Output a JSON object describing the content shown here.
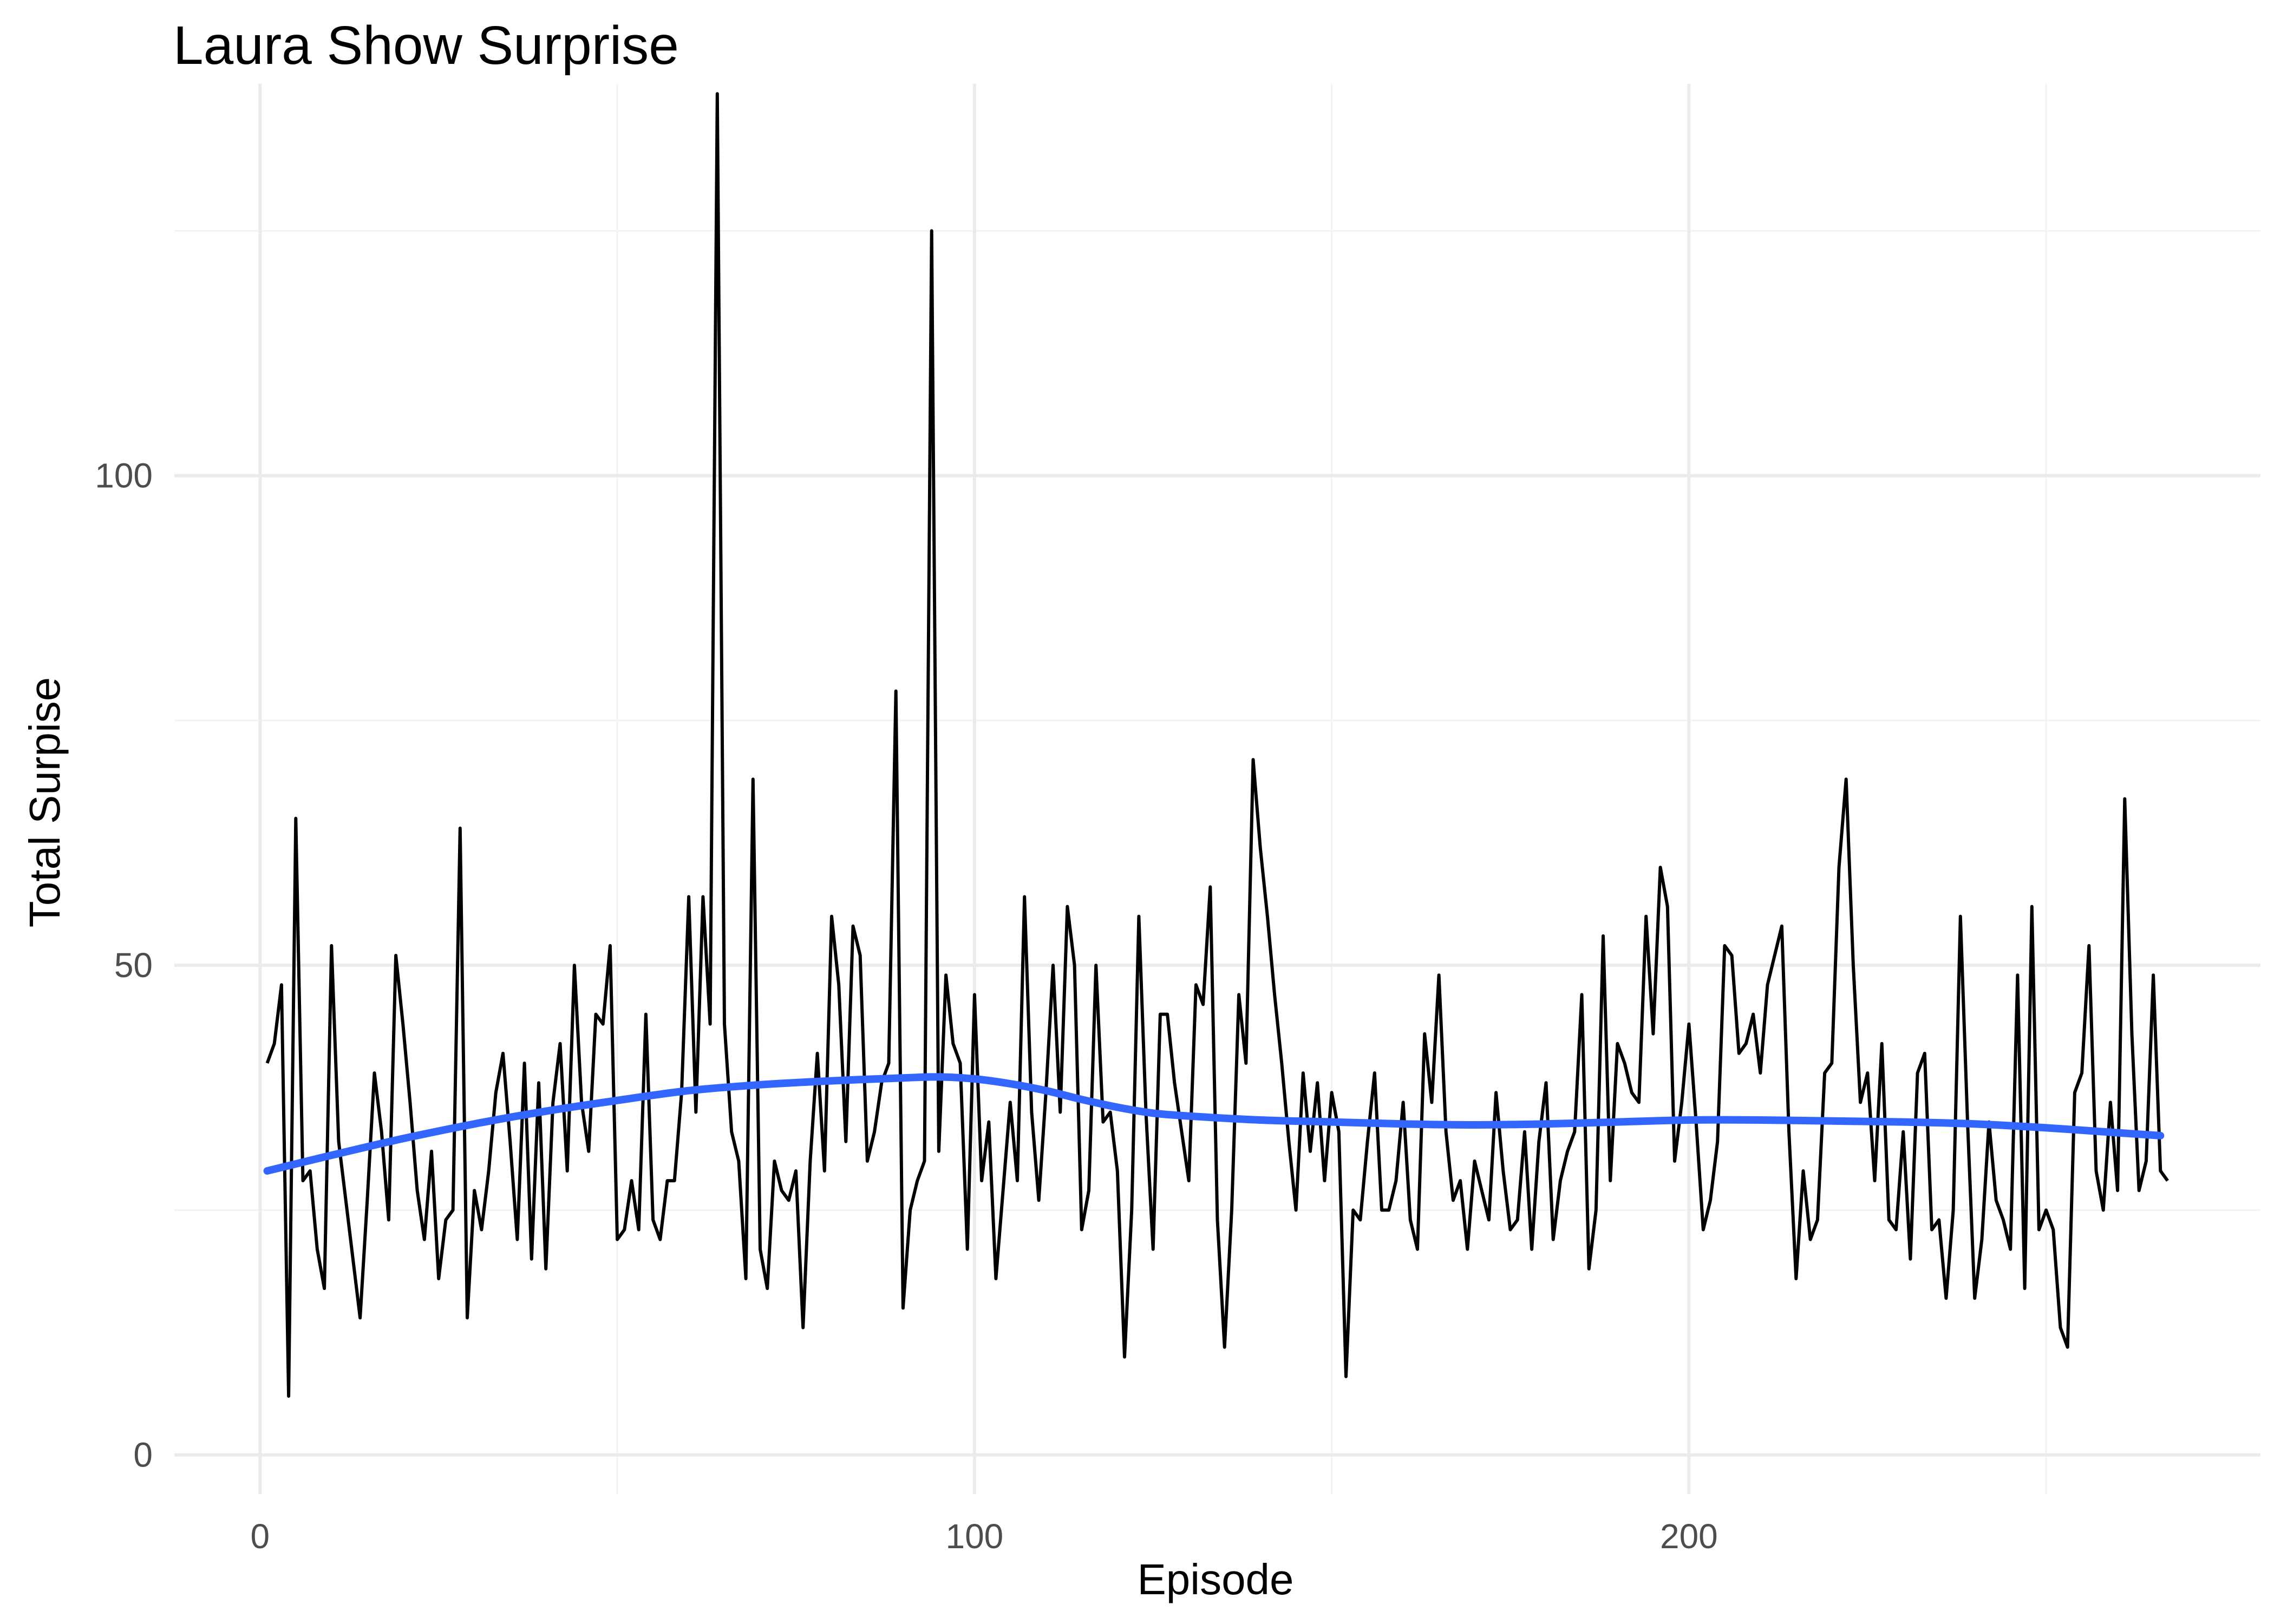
{
  "chart_data": {
    "type": "line",
    "title": "Laura Show Surprise",
    "xlabel": "Episode",
    "ylabel": "Total Surpise",
    "xlim": [
      -12,
      280
    ],
    "ylim": [
      -4,
      140
    ],
    "x_ticks": [
      0,
      100,
      200
    ],
    "y_ticks": [
      0,
      50,
      100
    ],
    "x_minor": [
      50,
      150,
      250
    ],
    "y_minor": [
      25,
      75,
      125
    ],
    "grid": true,
    "legend": "none",
    "series": [
      {
        "color": "#000000",
        "x_start": 1,
        "x_step": 1,
        "values": [
          40,
          42,
          48,
          6,
          65,
          28,
          29,
          21,
          17,
          52,
          32,
          26,
          20,
          14,
          26,
          39,
          33,
          24,
          51,
          44,
          36,
          27,
          22,
          31,
          18,
          24,
          25,
          64,
          14,
          27,
          23,
          29,
          37,
          41,
          32,
          22,
          40,
          20,
          38,
          19,
          36,
          42,
          29,
          50,
          36,
          31,
          45,
          44,
          52,
          22,
          23,
          28,
          23,
          45,
          24,
          22,
          28,
          28,
          37,
          57,
          35,
          57,
          44,
          139,
          44,
          33,
          30,
          18,
          69,
          21,
          17,
          30,
          27,
          26,
          29,
          13,
          30,
          41,
          29,
          55,
          48,
          32,
          54,
          51,
          30,
          33,
          38,
          40,
          78,
          15,
          25,
          28,
          30,
          125,
          31,
          49,
          42,
          40,
          21,
          47,
          28,
          34,
          18,
          27,
          36,
          28,
          57,
          35,
          26,
          37,
          50,
          35,
          56,
          50,
          23,
          27,
          50,
          34,
          35,
          29,
          10,
          25,
          55,
          35,
          21,
          45,
          45,
          38,
          33,
          28,
          48,
          46,
          58,
          24,
          11,
          25,
          47,
          40,
          71,
          62,
          55,
          47,
          40,
          32,
          25,
          39,
          31,
          38,
          28,
          37,
          33,
          8,
          25,
          24,
          32,
          39,
          25,
          25,
          28,
          36,
          24,
          21,
          43,
          36,
          49,
          33,
          26,
          28,
          21,
          30,
          27,
          24,
          37,
          29,
          23,
          24,
          33,
          21,
          32,
          38,
          22,
          28,
          31,
          33,
          47,
          19,
          25,
          53,
          28,
          42,
          40,
          37,
          36,
          55,
          43,
          60,
          56,
          30,
          36,
          44,
          34,
          23,
          26,
          32,
          52,
          51,
          41,
          42,
          45,
          39,
          48,
          51,
          54,
          33,
          18,
          29,
          22,
          24,
          39,
          40,
          60,
          69,
          50,
          36,
          39,
          28,
          42,
          24,
          23,
          33,
          20,
          39,
          41,
          23,
          24,
          16,
          25,
          55,
          34,
          16,
          22,
          34,
          26,
          24,
          21,
          49,
          17,
          56,
          23,
          25,
          23,
          13,
          11,
          37,
          39,
          52,
          29,
          25,
          36,
          27,
          67,
          43,
          27,
          30,
          49,
          29,
          28
        ]
      },
      {
        "color": "#3366ff",
        "x": [
          1,
          10,
          20,
          30,
          40,
          50,
          60,
          70,
          80,
          90,
          95,
          100,
          105,
          110,
          115,
          120,
          125,
          130,
          140,
          150,
          160,
          170,
          180,
          190,
          200,
          210,
          220,
          230,
          240,
          250,
          260,
          266
        ],
        "values": [
          29,
          30.6,
          32.3,
          33.8,
          35.1,
          36.2,
          37.2,
          37.8,
          38.2,
          38.5,
          38.6,
          38.4,
          37.9,
          37.2,
          36.3,
          35.5,
          34.9,
          34.6,
          34.2,
          34.0,
          33.8,
          33.7,
          33.8,
          34.0,
          34.2,
          34.2,
          34.1,
          34.0,
          33.8,
          33.4,
          32.9,
          32.6
        ]
      }
    ]
  }
}
